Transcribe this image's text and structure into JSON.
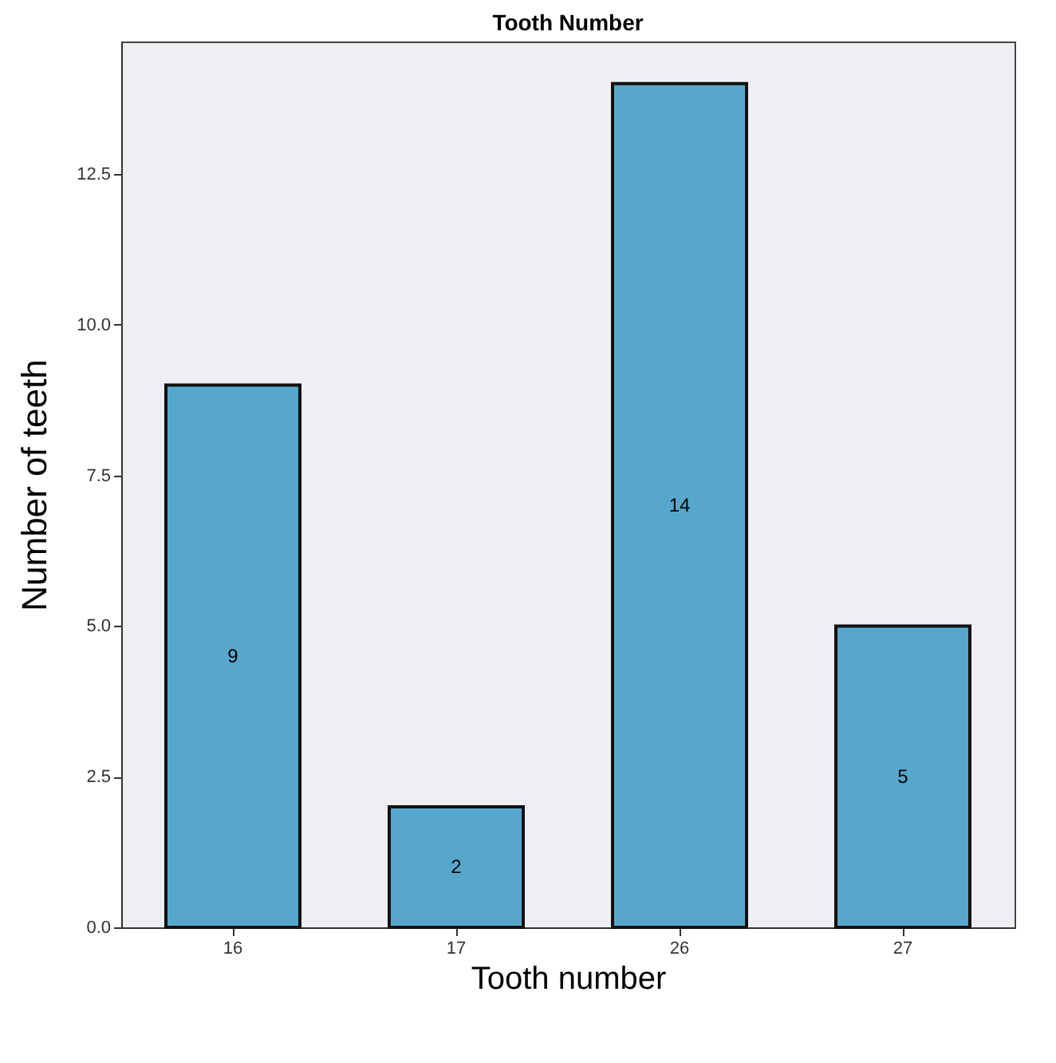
{
  "chart_data": {
    "type": "bar",
    "title": "Tooth Number",
    "xlabel": "Tooth number",
    "ylabel": "Number of teeth",
    "categories": [
      "16",
      "17",
      "26",
      "27"
    ],
    "values": [
      9,
      2,
      14,
      5
    ],
    "color": "#57a7cc",
    "ylim": [
      0,
      14.7
    ],
    "yticks": [
      {
        "value": 0,
        "label": "0.0"
      },
      {
        "value": 2.5,
        "label": "2.5"
      },
      {
        "value": 5,
        "label": "5.0"
      },
      {
        "value": 7.5,
        "label": "7.5"
      },
      {
        "value": 10,
        "label": "10.0"
      },
      {
        "value": 12.5,
        "label": "12.5"
      }
    ],
    "grid": false,
    "data_labels": true
  }
}
